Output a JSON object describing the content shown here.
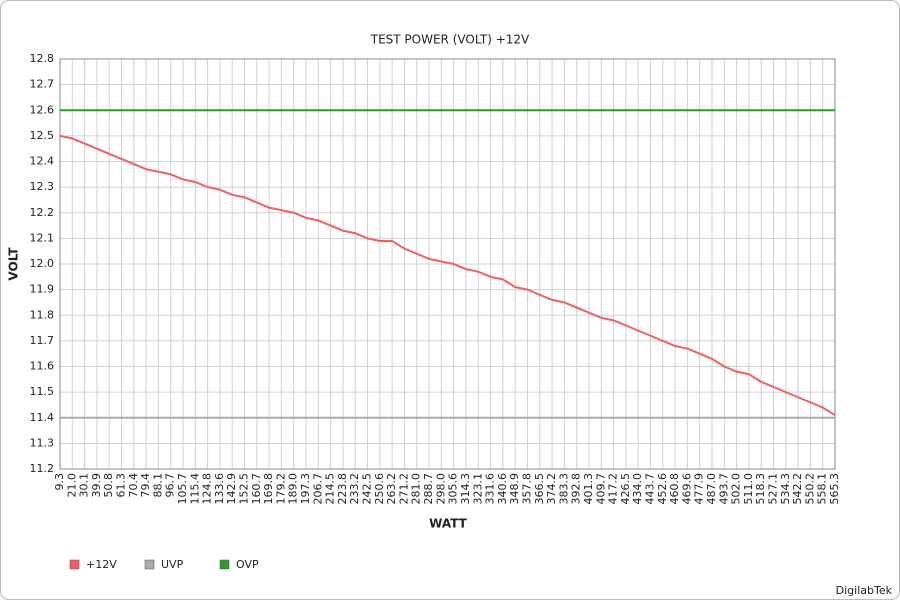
{
  "chart_data": {
    "type": "line",
    "title": "TEST POWER (VOLT) +12V",
    "x_label": "WATT",
    "y_label": "VOLT",
    "credit": "DigilabTek",
    "categories": [
      "9.3",
      "21.0",
      "30.1",
      "39.9",
      "50.8",
      "61.3",
      "70.4",
      "79.4",
      "88.1",
      "96.7",
      "105.7",
      "115.4",
      "124.8",
      "133.6",
      "142.9",
      "152.5",
      "160.7",
      "169.8",
      "179.2",
      "189.0",
      "197.3",
      "206.7",
      "214.5",
      "223.8",
      "233.2",
      "242.5",
      "250.6",
      "263.2",
      "271.2",
      "281.0",
      "288.7",
      "298.0",
      "305.6",
      "314.3",
      "323.1",
      "331.6",
      "340.6",
      "348.9",
      "357.8",
      "366.5",
      "374.2",
      "383.3",
      "392.8",
      "401.3",
      "409.7",
      "417.2",
      "426.5",
      "434.0",
      "443.7",
      "452.6",
      "460.8",
      "469.6",
      "477.9",
      "487.0",
      "493.7",
      "502.0",
      "511.0",
      "518.3",
      "527.1",
      "534.3",
      "542.2",
      "550.2",
      "558.1",
      "565.3"
    ],
    "series": [
      {
        "name": "+12V",
        "color": "#f06060",
        "values": [
          12.5,
          12.49,
          12.47,
          12.45,
          12.43,
          12.41,
          12.39,
          12.37,
          12.36,
          12.35,
          12.33,
          12.32,
          12.3,
          12.29,
          12.27,
          12.26,
          12.24,
          12.22,
          12.21,
          12.2,
          12.18,
          12.17,
          12.15,
          12.13,
          12.12,
          12.1,
          12.09,
          12.09,
          12.06,
          12.04,
          12.02,
          12.01,
          12.0,
          11.98,
          11.97,
          11.95,
          11.94,
          11.91,
          11.9,
          11.88,
          11.86,
          11.85,
          11.83,
          11.81,
          11.79,
          11.78,
          11.76,
          11.74,
          11.72,
          11.7,
          11.68,
          11.67,
          11.65,
          11.63,
          11.6,
          11.58,
          11.57,
          11.54,
          11.52,
          11.5,
          11.48,
          11.46,
          11.44,
          11.41
        ]
      },
      {
        "name": "UVP",
        "color": "#aaaaaa",
        "values": [
          11.4,
          11.4,
          11.4,
          11.4,
          11.4,
          11.4,
          11.4,
          11.4,
          11.4,
          11.4,
          11.4,
          11.4,
          11.4,
          11.4,
          11.4,
          11.4,
          11.4,
          11.4,
          11.4,
          11.4,
          11.4,
          11.4,
          11.4,
          11.4,
          11.4,
          11.4,
          11.4,
          11.4,
          11.4,
          11.4,
          11.4,
          11.4,
          11.4,
          11.4,
          11.4,
          11.4,
          11.4,
          11.4,
          11.4,
          11.4,
          11.4,
          11.4,
          11.4,
          11.4,
          11.4,
          11.4,
          11.4,
          11.4,
          11.4,
          11.4,
          11.4,
          11.4,
          11.4,
          11.4,
          11.4,
          11.4,
          11.4,
          11.4,
          11.4,
          11.4,
          11.4,
          11.4,
          11.4,
          11.4
        ]
      },
      {
        "name": "OVP",
        "color": "#2a9a2a",
        "values": [
          12.6,
          12.6,
          12.6,
          12.6,
          12.6,
          12.6,
          12.6,
          12.6,
          12.6,
          12.6,
          12.6,
          12.6,
          12.6,
          12.6,
          12.6,
          12.6,
          12.6,
          12.6,
          12.6,
          12.6,
          12.6,
          12.6,
          12.6,
          12.6,
          12.6,
          12.6,
          12.6,
          12.6,
          12.6,
          12.6,
          12.6,
          12.6,
          12.6,
          12.6,
          12.6,
          12.6,
          12.6,
          12.6,
          12.6,
          12.6,
          12.6,
          12.6,
          12.6,
          12.6,
          12.6,
          12.6,
          12.6,
          12.6,
          12.6,
          12.6,
          12.6,
          12.6,
          12.6,
          12.6,
          12.6,
          12.6,
          12.6,
          12.6,
          12.6,
          12.6,
          12.6,
          12.6,
          12.6,
          12.6
        ]
      }
    ],
    "ylim": [
      11.2,
      12.8
    ],
    "yticks": [
      11.2,
      11.3,
      11.4,
      11.5,
      11.6,
      11.7,
      11.8,
      11.9,
      {
        "value": 12,
        "label": "12.0"
      },
      12.1,
      12.2,
      12.3,
      12.4,
      12.5,
      12.6,
      12.7,
      12.8
    ],
    "grid": true
  }
}
